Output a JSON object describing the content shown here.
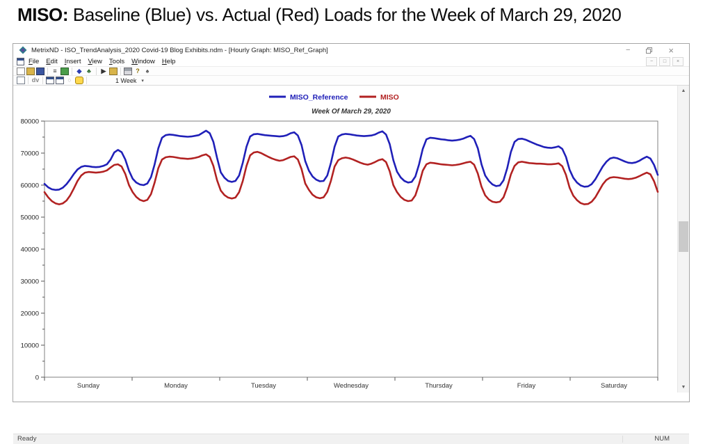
{
  "page": {
    "heading_bold": "MISO:",
    "heading_rest": " Baseline (Blue) vs. Actual (Red) Loads for the Week of March 29, 2020"
  },
  "icons": {
    "minimize": "−",
    "close": "×",
    "scroll_up": "▲",
    "scroll_down": "▼",
    "dropdown_arrow": "▾"
  },
  "window": {
    "title": "MetrixND - ISO_TrendAnalysis_2020 Covid-19 Blog Exhibits.ndm - [Hourly Graph: MISO_Ref_Graph]",
    "menu": [
      "File",
      "Edit",
      "Insert",
      "View",
      "Tools",
      "Window",
      "Help"
    ],
    "mdi_controls": [
      "−",
      "□",
      "×"
    ],
    "toolbar_main": [
      {
        "name": "new-file-icon",
        "type": "page"
      },
      {
        "name": "open-icon",
        "type": "folder"
      },
      {
        "name": "save-icon",
        "type": "save"
      },
      {
        "sep": true
      },
      {
        "name": "properties-icon",
        "glyph": "≡",
        "color": "#333333"
      },
      {
        "name": "paste-icon",
        "type": "green"
      },
      {
        "sep": true
      },
      {
        "name": "navigator-icon",
        "glyph": "◆",
        "color": "#2a3bb0"
      },
      {
        "name": "hierarchy-icon",
        "glyph": "♣",
        "color": "#2f6b2f"
      },
      {
        "sep": true
      },
      {
        "name": "run-icon",
        "glyph": "▶",
        "color": "#333333"
      },
      {
        "name": "export-icon",
        "type": "folder"
      },
      {
        "sep": true
      },
      {
        "name": "print-icon",
        "type": "print"
      },
      {
        "name": "help-icon",
        "glyph": "?",
        "color": "#8a6d00"
      },
      {
        "name": "schema-icon",
        "glyph": "♠",
        "color": "#555555"
      }
    ],
    "toolbar_graph": [
      {
        "name": "data-grid-icon",
        "type": "grid"
      },
      {
        "sep": true
      },
      {
        "name": "audit-icon",
        "glyph": "dv",
        "color": "#888888"
      },
      {
        "sep": true
      },
      {
        "name": "new-window-icon",
        "type": "window"
      },
      {
        "name": "cascade-window-icon",
        "type": "window"
      },
      {
        "name": "refresh-icon",
        "glyph": "○",
        "color": "#bbbbbb"
      },
      {
        "name": "comment-icon",
        "type": "bubble"
      },
      {
        "sep": true
      }
    ],
    "range_selector": {
      "label": "1 Week"
    },
    "statusbar": {
      "left": "Ready",
      "right": "NUM"
    }
  },
  "chart_data": {
    "type": "line",
    "title": "Week Of March 29, 2020",
    "legend_position": "top-center",
    "grid": false,
    "x_axis": {
      "categories": [
        "Sunday",
        "Monday",
        "Tuesday",
        "Wednesday",
        "Thursday",
        "Friday",
        "Saturday"
      ],
      "points_per_day": 24,
      "unit": "hour of week"
    },
    "y_axis": {
      "min": 0,
      "max": 80000,
      "major_tick": 10000,
      "minor_tick": 5000,
      "tick_labels": [
        "0",
        "10000",
        "20000",
        "30000",
        "40000",
        "50000",
        "60000",
        "70000",
        "80000"
      ]
    },
    "series": [
      {
        "name": "MISO_Reference",
        "color": "#2020b8",
        "values": [
          60400,
          59300,
          58700,
          58500,
          58600,
          59200,
          60300,
          61800,
          63500,
          64900,
          65700,
          66000,
          65900,
          65700,
          65600,
          65700,
          66000,
          66500,
          68000,
          70200,
          71000,
          70300,
          68000,
          64500,
          62000,
          60800,
          60200,
          60000,
          60500,
          62500,
          66500,
          71500,
          74800,
          75600,
          75800,
          75700,
          75500,
          75300,
          75200,
          75100,
          75200,
          75400,
          75600,
          76300,
          77000,
          76200,
          73500,
          68500,
          64000,
          62300,
          61300,
          61000,
          61300,
          63000,
          67000,
          72000,
          75200,
          75900,
          76000,
          75800,
          75600,
          75500,
          75400,
          75300,
          75200,
          75300,
          75600,
          76200,
          76500,
          75500,
          72500,
          67500,
          64500,
          62700,
          61700,
          61200,
          61300,
          63000,
          67000,
          72000,
          75200,
          75800,
          76000,
          75900,
          75700,
          75500,
          75400,
          75300,
          75400,
          75500,
          75800,
          76400,
          76800,
          75800,
          72800,
          67800,
          64200,
          62400,
          61300,
          60800,
          61000,
          62700,
          66500,
          71300,
          74300,
          74800,
          74700,
          74500,
          74300,
          74200,
          74000,
          73900,
          74000,
          74200,
          74500,
          75000,
          75400,
          74400,
          71500,
          66500,
          63000,
          61300,
          60200,
          59700,
          59900,
          61500,
          65300,
          70300,
          73500,
          74400,
          74500,
          74200,
          73700,
          73200,
          72700,
          72300,
          71900,
          71700,
          71600,
          71800,
          72100,
          71300,
          68800,
          64800,
          62300,
          60800,
          59900,
          59500,
          59600,
          60300,
          61800,
          63800,
          65800,
          67300,
          68300,
          68600,
          68400,
          67900,
          67400,
          67000,
          66900,
          67100,
          67600,
          68300,
          68900,
          68300,
          66300,
          63200
        ]
      },
      {
        "name": "MISO",
        "color": "#b22222",
        "values": [
          57800,
          56200,
          55000,
          54300,
          54000,
          54300,
          55200,
          56800,
          59000,
          61300,
          63000,
          63900,
          64100,
          64000,
          63900,
          64000,
          64200,
          64600,
          65500,
          66300,
          66500,
          65800,
          63500,
          60000,
          57800,
          56300,
          55400,
          55000,
          55400,
          57200,
          60800,
          65300,
          68000,
          68700,
          68900,
          68800,
          68600,
          68400,
          68300,
          68200,
          68300,
          68500,
          68800,
          69300,
          69600,
          68800,
          66000,
          61500,
          58300,
          56900,
          56100,
          55800,
          56100,
          57800,
          61300,
          66000,
          69300,
          70200,
          70400,
          70000,
          69400,
          68800,
          68300,
          67900,
          67600,
          67800,
          68300,
          68800,
          69000,
          68000,
          65000,
          60500,
          58500,
          57000,
          56200,
          55900,
          56200,
          57900,
          61400,
          65800,
          67800,
          68400,
          68600,
          68400,
          68000,
          67500,
          67000,
          66600,
          66400,
          66700,
          67200,
          67800,
          68100,
          67200,
          64300,
          60000,
          57800,
          56300,
          55400,
          55000,
          55200,
          56800,
          60300,
          64500,
          66500,
          67000,
          66900,
          66700,
          66500,
          66400,
          66300,
          66200,
          66300,
          66500,
          66800,
          67100,
          67300,
          66400,
          63600,
          59500,
          56800,
          55500,
          54800,
          54600,
          54800,
          56200,
          59300,
          63300,
          66000,
          67100,
          67300,
          67100,
          66900,
          66800,
          66700,
          66700,
          66600,
          66500,
          66500,
          66600,
          66800,
          65900,
          63200,
          59200,
          56700,
          55300,
          54400,
          54000,
          54100,
          54800,
          56200,
          58200,
          60200,
          61600,
          62300,
          62500,
          62400,
          62200,
          62000,
          61900,
          62000,
          62300,
          62800,
          63400,
          63900,
          63400,
          61200,
          57900
        ]
      }
    ]
  }
}
